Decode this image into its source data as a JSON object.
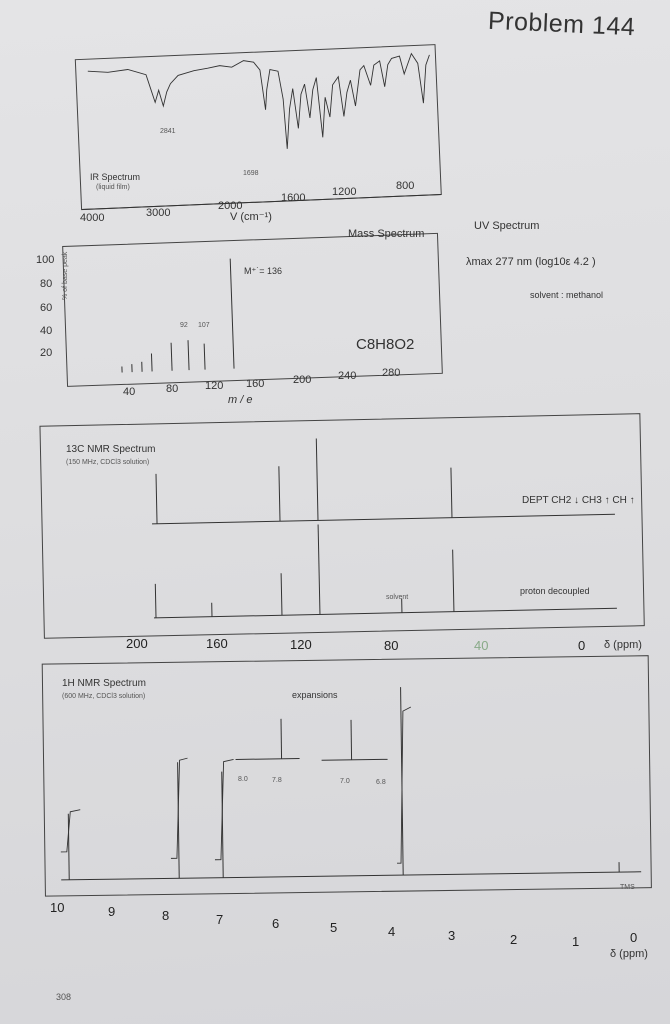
{
  "problem_title": "Problem 144",
  "page_number": "308",
  "ir": {
    "title": "IR Spectrum",
    "subtitle": "(liquid film)",
    "peak_labels": [
      "2841",
      "1698"
    ],
    "x_ticks": [
      "4000",
      "3000",
      "2000",
      "1600",
      "1200",
      "800"
    ],
    "x_label": "V (cm⁻¹)"
  },
  "mass": {
    "title": "Mass Spectrum",
    "y_label": "% of base peak",
    "y_ticks": [
      "100",
      "80",
      "60",
      "40",
      "20"
    ],
    "x_ticks": [
      "40",
      "80",
      "120",
      "160",
      "200",
      "240",
      "280"
    ],
    "x_label": "m / e",
    "molecular_ion": "M⁺˙= 136",
    "frag_labels": [
      "92",
      "107"
    ],
    "formula": "C8H8O2"
  },
  "uv": {
    "title": "UV Spectrum",
    "lambda_text": "λmax 277 nm  (log10ε 4.2 )",
    "solvent": "solvent :  methanol"
  },
  "c13": {
    "title": "13C NMR Spectrum",
    "subtitle": "(150 MHz, CDCl3 solution)",
    "dept_label": "DEPT  CH2 ↓ CH3 ↑ CH ↑",
    "decoupled_label": "proton decoupled",
    "solvent_label": "solvent",
    "x_ticks": [
      "200",
      "160",
      "120",
      "80",
      "40",
      "0"
    ],
    "x_unit": "δ (ppm)"
  },
  "h1": {
    "title": "1H NMR Spectrum",
    "subtitle": "(600 MHz, CDCl3 solution)",
    "expansions_label": "expansions",
    "expansion_ticks": [
      "8.0",
      "7.8",
      "7.0",
      "6.8"
    ],
    "tms_label": "TMS",
    "x_ticks": [
      "10",
      "9",
      "8",
      "7",
      "6",
      "5",
      "4",
      "3",
      "2",
      "1",
      "0"
    ],
    "x_unit": "δ (ppm)"
  }
}
